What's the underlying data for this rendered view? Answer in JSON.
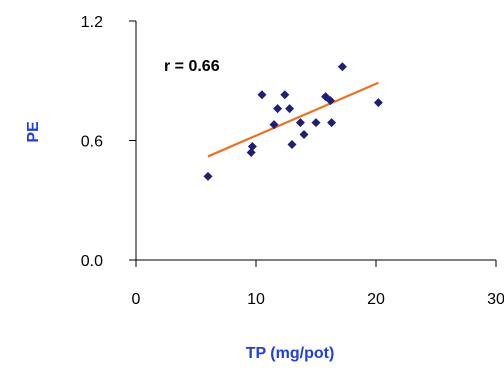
{
  "chart_data": {
    "type": "scatter",
    "xlabel": "TP (mg/pot)",
    "ylabel": "PE",
    "xlim": [
      0,
      30
    ],
    "ylim": [
      0,
      1.2
    ],
    "x_ticks": [
      "0",
      "10",
      "20",
      "30"
    ],
    "y_ticks": [
      "0.0",
      "0.6",
      "1.2"
    ],
    "grid": false,
    "annotation": "r = 0.66",
    "colors": {
      "points": "#1f1f7a",
      "trendline": "#f07020",
      "axis_title": "#1f3fe0",
      "axis": "#000000"
    },
    "points": [
      {
        "x": 6.0,
        "y": 0.42
      },
      {
        "x": 9.6,
        "y": 0.54
      },
      {
        "x": 9.7,
        "y": 0.57
      },
      {
        "x": 10.5,
        "y": 0.83
      },
      {
        "x": 11.5,
        "y": 0.68
      },
      {
        "x": 11.8,
        "y": 0.76
      },
      {
        "x": 12.4,
        "y": 0.83
      },
      {
        "x": 12.8,
        "y": 0.76
      },
      {
        "x": 13.0,
        "y": 0.58
      },
      {
        "x": 13.7,
        "y": 0.69
      },
      {
        "x": 14.0,
        "y": 0.63
      },
      {
        "x": 15.0,
        "y": 0.69
      },
      {
        "x": 15.8,
        "y": 0.82
      },
      {
        "x": 16.2,
        "y": 0.8
      },
      {
        "x": 16.3,
        "y": 0.69
      },
      {
        "x": 17.2,
        "y": 0.97
      },
      {
        "x": 20.2,
        "y": 0.79
      }
    ],
    "trendline": {
      "x": [
        6.0,
        20.2
      ],
      "y": [
        0.52,
        0.89
      ]
    }
  }
}
